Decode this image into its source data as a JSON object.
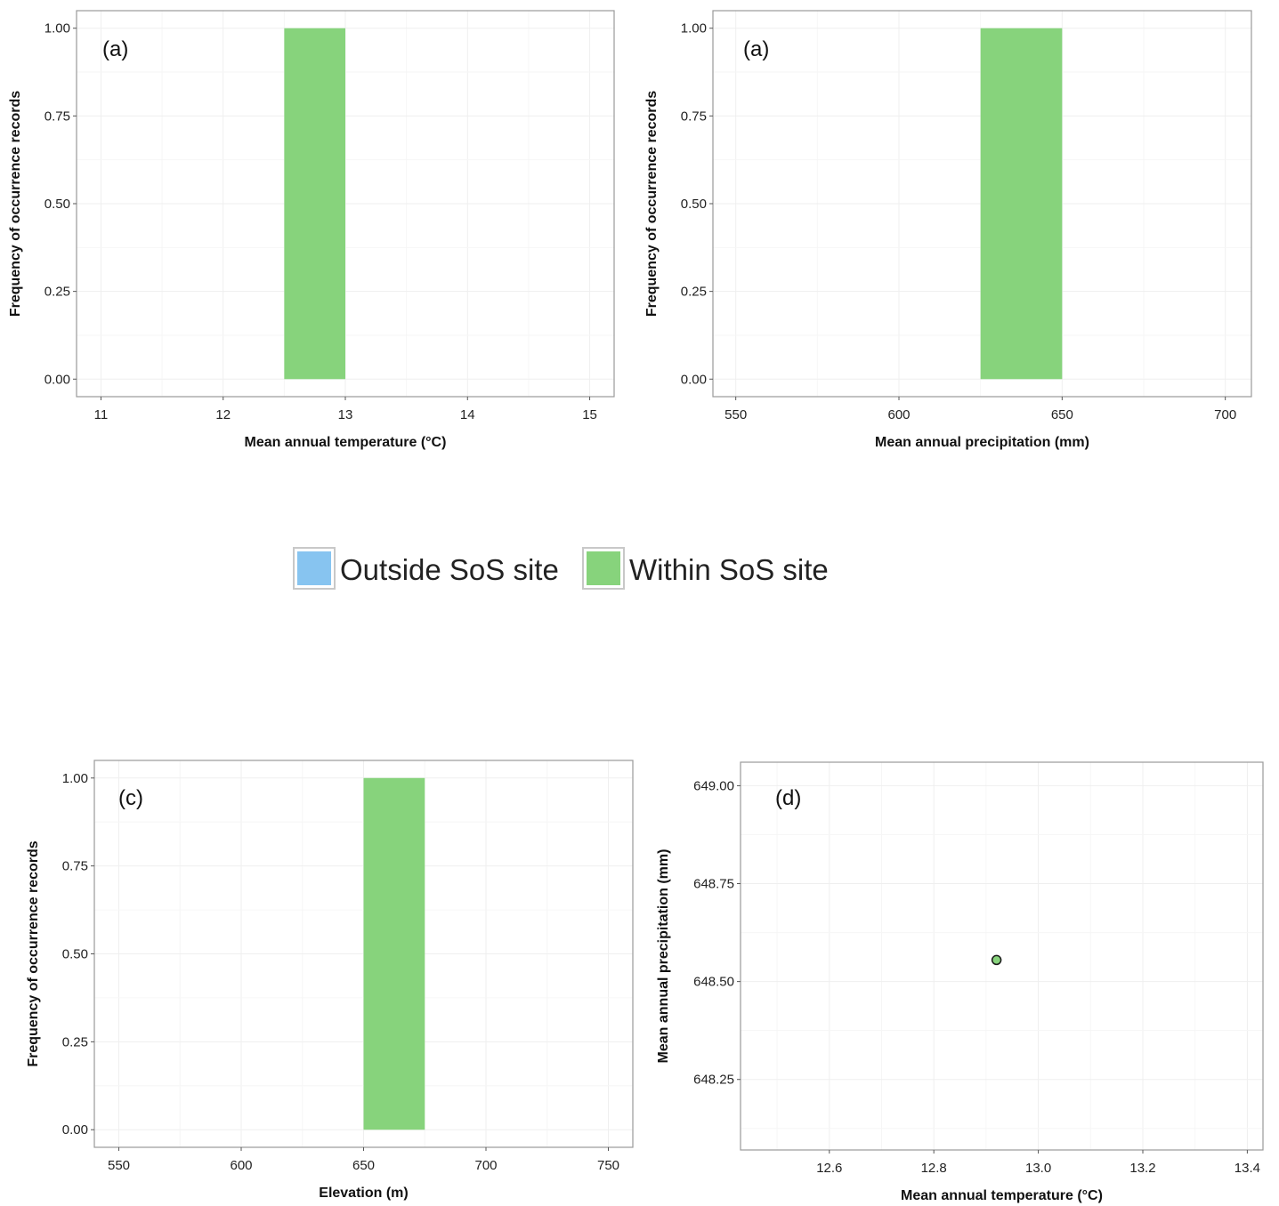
{
  "legend": {
    "items": [
      {
        "label": "Outside SoS site",
        "color": "#87C4F0"
      },
      {
        "label": "Within SoS site",
        "color": "#87D37C"
      }
    ]
  },
  "chart_data": [
    {
      "type": "bar",
      "panel_label": "(a)",
      "xlabel": "Mean annual temperature (°C)",
      "ylabel": "Frequency of occurrence records",
      "xlim": [
        10.8,
        15.2
      ],
      "ylim": [
        -0.05,
        1.05
      ],
      "xticks": [
        11,
        12,
        13,
        14,
        15
      ],
      "yticks": [
        "0.00",
        "0.25",
        "0.50",
        "0.75",
        "1.00"
      ],
      "series": [
        {
          "name": "Within SoS site",
          "color": "#87D37C",
          "bins": [
            {
              "x0": 12.5,
              "x1": 13.0,
              "value": 1.0
            }
          ]
        }
      ],
      "grid": true
    },
    {
      "type": "bar",
      "panel_label": "(a)",
      "xlabel": "Mean annual precipitation (mm)",
      "ylabel": "Frequency of occurrence records",
      "xlim": [
        543,
        708
      ],
      "ylim": [
        -0.05,
        1.05
      ],
      "xticks": [
        550,
        600,
        650,
        700
      ],
      "yticks": [
        "0.00",
        "0.25",
        "0.50",
        "0.75",
        "1.00"
      ],
      "series": [
        {
          "name": "Within SoS site",
          "color": "#87D37C",
          "bins": [
            {
              "x0": 625,
              "x1": 650,
              "value": 1.0
            }
          ]
        }
      ],
      "grid": true
    },
    {
      "type": "bar",
      "panel_label": "(c)",
      "xlabel": "Elevation (m)",
      "ylabel": "Frequency of occurrence records",
      "xlim": [
        540,
        760
      ],
      "ylim": [
        -0.05,
        1.05
      ],
      "xticks": [
        550,
        600,
        650,
        700,
        750
      ],
      "yticks": [
        "0.00",
        "0.25",
        "0.50",
        "0.75",
        "1.00"
      ],
      "series": [
        {
          "name": "Within SoS site",
          "color": "#87D37C",
          "bins": [
            {
              "x0": 650,
              "x1": 675,
              "value": 1.0
            }
          ]
        }
      ],
      "grid": true
    },
    {
      "type": "scatter",
      "panel_label": "(d)",
      "xlabel": "Mean annual temperature (°C)",
      "ylabel": "Mean annual precipitation (mm)",
      "xlim": [
        12.43,
        13.43
      ],
      "ylim": [
        648.07,
        649.06
      ],
      "xticks": [
        "12.6",
        "12.8",
        "13.0",
        "13.2",
        "13.4"
      ],
      "yticks": [
        "648.25",
        "648.50",
        "648.75",
        "649.00"
      ],
      "series": [
        {
          "name": "Within SoS site",
          "color": "#87D37C",
          "points": [
            {
              "x": 12.92,
              "y": 648.555
            }
          ]
        }
      ],
      "grid": true
    }
  ]
}
